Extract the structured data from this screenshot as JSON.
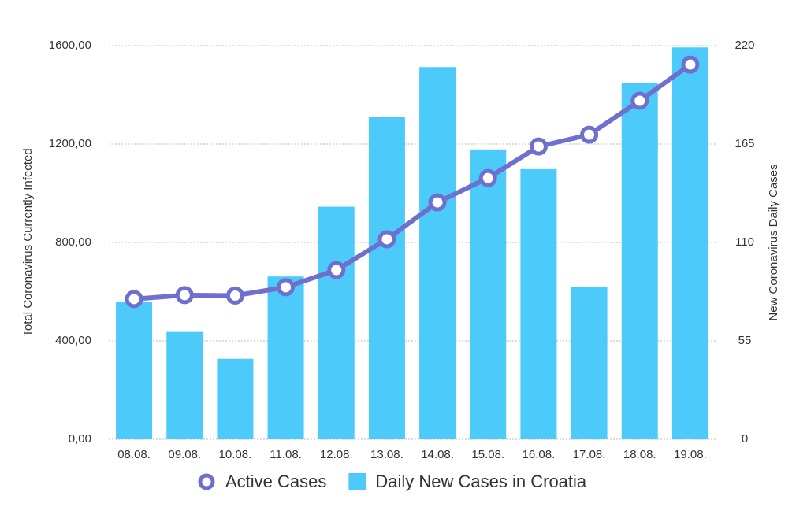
{
  "chart_data": {
    "type": "combo",
    "categories": [
      "08.08.",
      "09.08.",
      "10.08.",
      "11.08.",
      "12.08.",
      "13.08.",
      "14.08.",
      "15.08.",
      "16.08.",
      "17.08.",
      "18.08.",
      "19.08."
    ],
    "series": [
      {
        "name": "Active Cases",
        "type": "line",
        "color": "#6f6fcf",
        "values": [
          570,
          586,
          584,
          618,
          688,
          813,
          963,
          1062,
          1190,
          1238,
          1376,
          1523
        ]
      },
      {
        "name": "Daily New Cases in Croatia",
        "type": "bar",
        "axis": "y2",
        "color": "#4ccbfb",
        "values": [
          77,
          60,
          45,
          91,
          130,
          180,
          208,
          162,
          151,
          85,
          199,
          219
        ]
      }
    ],
    "y_label": "Total Coronavirus Currently Infected",
    "y2_label": "New Coronavirus Daily Cases",
    "ylim": [
      0,
      1600
    ],
    "yticks": [
      {
        "value": 0,
        "label": "0,00"
      },
      {
        "value": 400,
        "label": "400,00"
      },
      {
        "value": 800,
        "label": "800,00"
      },
      {
        "value": 1200,
        "label": "1200,00"
      },
      {
        "value": 1600,
        "label": "1600,00"
      }
    ],
    "y2lim": [
      0,
      220
    ],
    "y2ticks": [
      0,
      55,
      110,
      165,
      220
    ],
    "grid": true
  }
}
